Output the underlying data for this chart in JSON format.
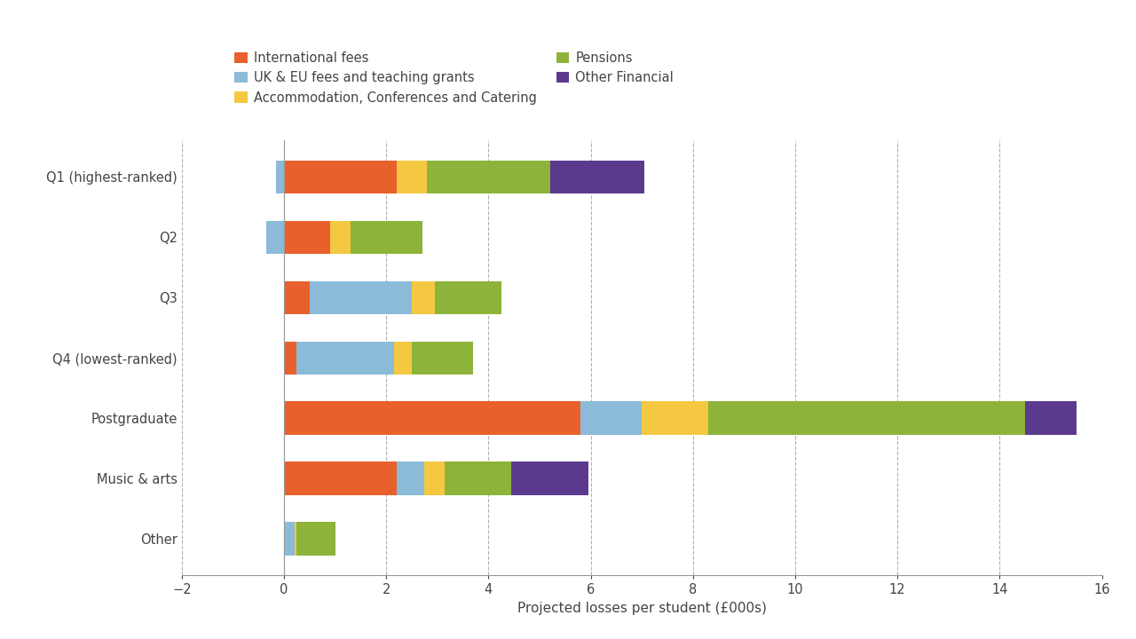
{
  "categories": [
    "Q1 (highest-ranked)",
    "Q2",
    "Q3",
    "Q4 (lowest-ranked)",
    "Postgraduate",
    "Music & arts",
    "Other"
  ],
  "series": [
    {
      "name": "International fees",
      "color": "#E8602C",
      "values": [
        2.2,
        0.9,
        0.5,
        0.25,
        5.8,
        2.2,
        0.0
      ]
    },
    {
      "name": "UK & EU fees and teaching grants",
      "color": "#8BBBD9",
      "values": [
        0.0,
        0.0,
        2.0,
        1.9,
        1.2,
        0.55,
        0.2
      ]
    },
    {
      "name": "Accommodation, Conferences and Catering",
      "color": "#F5C842",
      "values": [
        0.6,
        0.4,
        0.45,
        0.35,
        1.3,
        0.4,
        0.05
      ]
    },
    {
      "name": "Pensions",
      "color": "#8DB33A",
      "values": [
        2.4,
        1.4,
        1.3,
        1.2,
        6.2,
        1.3,
        0.75
      ]
    },
    {
      "name": "Other Financial",
      "color": "#5B3A8E",
      "values": [
        1.85,
        0.0,
        0.0,
        0.0,
        1.0,
        1.5,
        0.0
      ]
    }
  ],
  "neg_uk_eu": [
    -0.15,
    -0.35,
    0.0,
    0.0,
    0.0,
    0.0,
    0.0
  ],
  "xlabel": "Projected losses per student (£000s)",
  "xlim": [
    -2,
    16
  ],
  "xticks": [
    -2,
    0,
    2,
    4,
    6,
    8,
    10,
    12,
    14,
    16
  ],
  "background_color": "#ffffff",
  "bar_height": 0.55,
  "legend_fontsize": 10.5,
  "tick_fontsize": 10.5,
  "label_fontsize": 11,
  "grid_color": "#b0b0b0",
  "axis_color": "#999999",
  "text_color": "#444444"
}
